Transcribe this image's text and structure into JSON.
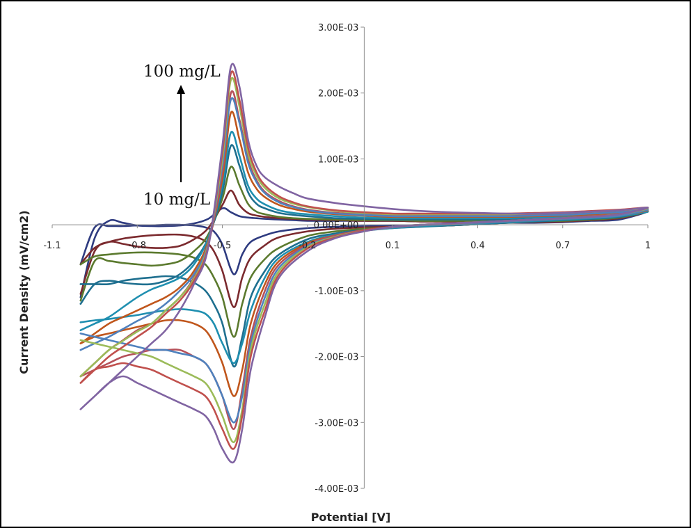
{
  "chart_data": {
    "type": "line",
    "title": "",
    "xlabel": "Potential [V]",
    "ylabel": "Current Density (mV/cm2)",
    "xlim": [
      -1.1,
      1
    ],
    "ylim": [
      -0.004,
      0.003
    ],
    "grid": false,
    "x_ticks": [
      "-1.1",
      "-0.8",
      "-0.5",
      "-0.2",
      "0.1",
      "0.4",
      "0.7",
      "1"
    ],
    "y_ticks": [
      "3.00E-03",
      "2.00E-03",
      "1.00E-03",
      "0.00E+00",
      "-1.00E-03",
      "-2.00E-03",
      "-3.00E-03",
      "-4.00E-03"
    ],
    "annotations": [
      {
        "text": "100 mg/L"
      },
      {
        "text": "10 mg/L"
      }
    ],
    "series_template": {
      "forward_x": [
        -1.0,
        -0.95,
        -0.9,
        -0.85,
        -0.8,
        -0.75,
        -0.7,
        -0.65,
        -0.6,
        -0.55,
        -0.5,
        -0.47,
        -0.44,
        -0.41,
        -0.38,
        -0.35,
        -0.3,
        -0.25,
        -0.2,
        -0.1,
        0.0,
        0.1,
        0.2,
        0.3,
        0.4,
        0.5,
        0.6,
        0.7,
        0.8,
        0.9,
        1.0
      ],
      "reverse_x": [
        1.0,
        0.9,
        0.8,
        0.7,
        0.6,
        0.5,
        0.4,
        0.3,
        0.2,
        0.1,
        0.0,
        -0.1,
        -0.2,
        -0.3,
        -0.35,
        -0.4,
        -0.43,
        -0.46,
        -0.5,
        -0.53,
        -0.56,
        -0.6,
        -0.65,
        -0.7,
        -0.75,
        -0.8,
        -0.85,
        -0.9,
        -0.95,
        -1.0
      ]
    },
    "series": [
      {
        "color": "#2e3b80",
        "forward_y": [
          -0.0011,
          -0.0002,
          6e-05,
          3e-05,
          -1e-05,
          -2e-05,
          -2e-05,
          -1e-05,
          2e-05,
          9e-05,
          0.00025,
          0.00019,
          0.00013,
          0.00011,
          0.0001,
          9e-05,
          8e-05,
          7e-05,
          6e-05,
          6e-05,
          6e-05,
          6e-05,
          5e-05,
          5e-05,
          4e-05,
          4e-05,
          4e-05,
          5e-05,
          6e-05,
          8e-05,
          0.0002
        ],
        "reverse_y": [
          0.0002,
          9e-05,
          6e-05,
          4e-05,
          3e-05,
          3e-05,
          1e-05,
          -1e-05,
          -1e-05,
          -1e-05,
          -2e-05,
          -3e-05,
          -5e-05,
          -0.0001,
          -0.00016,
          -0.00026,
          -0.00045,
          -0.00075,
          -0.0003,
          -0.0001,
          -4e-05,
          -1e-05,
          0.0,
          0.0,
          -1e-05,
          -1e-05,
          -2e-05,
          -2e-05,
          -4e-05,
          -0.0006
        ]
      },
      {
        "color": "#7b2a2e",
        "forward_y": [
          -0.00105,
          -0.0004,
          -0.00026,
          -0.00029,
          -0.00033,
          -0.00035,
          -0.00035,
          -0.00032,
          -0.00022,
          -5e-05,
          0.0003,
          0.00052,
          0.0003,
          0.00018,
          0.00014,
          0.00012,
          0.0001,
          9e-05,
          8e-05,
          7e-05,
          6e-05,
          6e-05,
          5e-05,
          5e-05,
          5e-05,
          5e-05,
          5e-05,
          6e-05,
          7e-05,
          0.0001,
          0.0002
        ],
        "reverse_y": [
          0.0002,
          0.0001,
          7e-05,
          5e-05,
          4e-05,
          3e-05,
          1e-05,
          -1e-05,
          -2e-05,
          -3e-05,
          -4e-05,
          -6e-05,
          -0.0001,
          -0.00019,
          -0.00031,
          -0.0005,
          -0.0008,
          -0.00125,
          -0.0007,
          -0.0004,
          -0.00025,
          -0.00018,
          -0.00015,
          -0.00015,
          -0.00016,
          -0.00018,
          -0.00021,
          -0.00026,
          -0.00035,
          -0.0006
        ]
      },
      {
        "color": "#5b7a2e",
        "forward_y": [
          -0.00115,
          -0.00055,
          -0.00055,
          -0.00058,
          -0.0006,
          -0.00062,
          -0.0006,
          -0.00055,
          -0.0004,
          -0.00015,
          0.0004,
          0.00088,
          0.0006,
          0.00032,
          0.0002,
          0.00016,
          0.00012,
          0.0001,
          9e-05,
          8e-05,
          7e-05,
          7e-05,
          6e-05,
          6e-05,
          6e-05,
          6e-05,
          7e-05,
          8e-05,
          0.0001,
          0.00012,
          0.0002
        ],
        "reverse_y": [
          0.0002,
          0.00011,
          8e-05,
          6e-05,
          5e-05,
          3e-05,
          1e-05,
          -1e-05,
          -2e-05,
          -4e-05,
          -6e-05,
          -0.0001,
          -0.00017,
          -0.00035,
          -0.00052,
          -0.0008,
          -0.0012,
          -0.0017,
          -0.0011,
          -0.0008,
          -0.0006,
          -0.0005,
          -0.00045,
          -0.00043,
          -0.00042,
          -0.00042,
          -0.00043,
          -0.00045,
          -0.00048,
          -0.0006
        ]
      },
      {
        "color": "#1e6f8f",
        "forward_y": [
          -0.0012,
          -0.0009,
          -0.00085,
          -0.00088,
          -0.0009,
          -0.0009,
          -0.00085,
          -0.00075,
          -0.00055,
          -0.0002,
          0.0005,
          0.0012,
          0.0009,
          0.0005,
          0.00032,
          0.00025,
          0.00018,
          0.00015,
          0.00013,
          0.0001,
          9e-05,
          8e-05,
          8e-05,
          8e-05,
          8e-05,
          8e-05,
          9e-05,
          0.0001,
          0.00012,
          0.00014,
          0.0002
        ],
        "reverse_y": [
          0.0002,
          0.00012,
          9e-05,
          7e-05,
          5e-05,
          3e-05,
          1e-05,
          -1e-05,
          -3e-05,
          -5e-05,
          -8e-05,
          -0.00013,
          -0.00022,
          -0.00045,
          -0.0007,
          -0.0011,
          -0.0017,
          -0.00215,
          -0.0015,
          -0.0012,
          -0.001,
          -0.00088,
          -0.0008,
          -0.00078,
          -0.0008,
          -0.00082,
          -0.00085,
          -0.0009,
          -0.0009,
          -0.0009
        ]
      },
      {
        "color": "#1f8fb0",
        "forward_y": [
          -0.0016,
          -0.0015,
          -0.0014,
          -0.00125,
          -0.0011,
          -0.00098,
          -0.0009,
          -0.0008,
          -0.0006,
          -0.0002,
          0.0006,
          0.0014,
          0.00105,
          0.0006,
          0.0004,
          0.00031,
          0.00022,
          0.00018,
          0.00016,
          0.00013,
          0.00011,
          0.0001,
          0.0001,
          0.0001,
          0.0001,
          0.0001,
          0.00011,
          0.00012,
          0.00014,
          0.00016,
          0.0002
        ],
        "reverse_y": [
          0.0002,
          0.00013,
          0.0001,
          8e-05,
          6e-05,
          4e-05,
          2e-05,
          0.0,
          -2e-05,
          -5e-05,
          -9e-05,
          -0.00015,
          -0.00026,
          -0.0005,
          -0.0008,
          -0.0013,
          -0.0018,
          -0.0021,
          -0.0018,
          -0.0015,
          -0.00135,
          -0.0013,
          -0.00128,
          -0.0013,
          -0.00133,
          -0.00137,
          -0.0014,
          -0.00143,
          -0.00145,
          -0.00148
        ]
      },
      {
        "color": "#c0561c",
        "forward_y": [
          -0.0018,
          -0.00165,
          -0.0015,
          -0.0014,
          -0.0013,
          -0.0012,
          -0.0011,
          -0.00095,
          -0.0007,
          -0.00025,
          0.0007,
          0.0017,
          0.0013,
          0.0008,
          0.00055,
          0.00042,
          0.0003,
          0.00024,
          0.0002,
          0.00016,
          0.00014,
          0.00012,
          0.00012,
          0.00012,
          0.00012,
          0.00012,
          0.00013,
          0.00014,
          0.00016,
          0.00018,
          0.00022
        ],
        "reverse_y": [
          0.00022,
          0.00014,
          0.00011,
          9e-05,
          7e-05,
          5e-05,
          3e-05,
          1e-05,
          -1e-05,
          -4e-05,
          -9e-05,
          -0.00016,
          -0.00028,
          -0.00055,
          -0.0009,
          -0.0015,
          -0.0022,
          -0.0026,
          -0.0021,
          -0.0018,
          -0.0016,
          -0.0015,
          -0.00145,
          -0.00145,
          -0.0015,
          -0.00155,
          -0.0016,
          -0.00165,
          -0.0017,
          -0.0018
        ]
      },
      {
        "color": "#b6515a",
        "forward_y": [
          -0.0023,
          -0.0021,
          -0.0019,
          -0.00175,
          -0.0016,
          -0.0015,
          -0.0013,
          -0.0011,
          -0.0008,
          -0.0003,
          0.0008,
          0.002,
          0.0016,
          0.001,
          0.00068,
          0.0005,
          0.00036,
          0.00028,
          0.00023,
          0.00018,
          0.00016,
          0.00014,
          0.00014,
          0.00014,
          0.00014,
          0.00014,
          0.00015,
          0.00016,
          0.00018,
          0.0002,
          0.00024
        ],
        "reverse_y": [
          0.00024,
          0.00015,
          0.00012,
          0.0001,
          8e-05,
          6e-05,
          4e-05,
          2e-05,
          0.0,
          -3e-05,
          -8e-05,
          -0.00016,
          -0.0003,
          -0.0006,
          -0.001,
          -0.0017,
          -0.0025,
          -0.0031,
          -0.0026,
          -0.0023,
          -0.0021,
          -0.002,
          -0.0019,
          -0.0019,
          -0.0019,
          -0.00195,
          -0.002,
          -0.0021,
          -0.0022,
          -0.0023
        ]
      },
      {
        "color": "#4f81bd",
        "forward_y": [
          -0.0019,
          -0.0018,
          -0.0017,
          -0.00158,
          -0.00146,
          -0.00135,
          -0.0012,
          -0.001,
          -0.00075,
          -0.00028,
          0.0009,
          0.0019,
          0.00155,
          0.00095,
          0.00065,
          0.00048,
          0.00034,
          0.00027,
          0.00022,
          0.00017,
          0.00015,
          0.00013,
          0.00013,
          0.00013,
          0.00013,
          0.00013,
          0.00014,
          0.00015,
          0.00017,
          0.00019,
          0.00023
        ],
        "reverse_y": [
          0.00023,
          0.00014,
          0.00011,
          9e-05,
          7e-05,
          5e-05,
          3e-05,
          1e-05,
          -1e-05,
          -4e-05,
          -9e-05,
          -0.00018,
          -0.00032,
          -0.00065,
          -0.0011,
          -0.0018,
          -0.0026,
          -0.003,
          -0.0026,
          -0.0023,
          -0.0021,
          -0.002,
          -0.00195,
          -0.0019,
          -0.0019,
          -0.00185,
          -0.0018,
          -0.00175,
          -0.0017,
          -0.00165
        ]
      },
      {
        "color": "#9bbb59",
        "forward_y": [
          -0.0023,
          -0.0021,
          -0.0019,
          -0.00176,
          -0.00162,
          -0.0015,
          -0.0013,
          -0.0011,
          -0.00082,
          -0.0003,
          0.001,
          0.0022,
          0.0018,
          0.0011,
          0.00075,
          0.00056,
          0.0004,
          0.00032,
          0.00027,
          0.00021,
          0.00018,
          0.00016,
          0.00016,
          0.00016,
          0.00016,
          0.00016,
          0.00017,
          0.00018,
          0.0002,
          0.00022,
          0.00025
        ],
        "reverse_y": [
          0.00025,
          0.00016,
          0.00013,
          0.0001,
          8e-05,
          6e-05,
          4e-05,
          2e-05,
          0.0,
          -3e-05,
          -9e-05,
          -0.00018,
          -0.00034,
          -0.0007,
          -0.0012,
          -0.0019,
          -0.0028,
          -0.0033,
          -0.0029,
          -0.0026,
          -0.0024,
          -0.0023,
          -0.0022,
          -0.0021,
          -0.002,
          -0.00195,
          -0.0019,
          -0.00185,
          -0.0018,
          -0.00175
        ]
      },
      {
        "color": "#c0504d",
        "forward_y": [
          -0.0024,
          -0.0022,
          -0.002,
          -0.00185,
          -0.0017,
          -0.00155,
          -0.00135,
          -0.00115,
          -0.00085,
          -0.00032,
          0.0011,
          0.0023,
          0.0019,
          0.00118,
          0.0008,
          0.0006,
          0.00043,
          0.00034,
          0.00028,
          0.00022,
          0.00019,
          0.00017,
          0.00017,
          0.00017,
          0.00017,
          0.00017,
          0.00018,
          0.00019,
          0.00021,
          0.00023,
          0.00026
        ],
        "reverse_y": [
          0.00026,
          0.00016,
          0.00013,
          0.0001,
          8e-05,
          6e-05,
          4e-05,
          2e-05,
          0.0,
          -3e-05,
          -9e-05,
          -0.00019,
          -0.00036,
          -0.00075,
          -0.0013,
          -0.002,
          -0.0029,
          -0.0034,
          -0.0031,
          -0.0028,
          -0.0026,
          -0.0025,
          -0.0024,
          -0.0023,
          -0.0022,
          -0.00215,
          -0.0021,
          -0.00215,
          -0.0022,
          -0.0024
        ]
      },
      {
        "color": "#8064a2",
        "forward_y": [
          -0.0028,
          -0.0026,
          -0.0024,
          -0.0022,
          -0.002,
          -0.0018,
          -0.0016,
          -0.0013,
          -0.0009,
          -0.00035,
          0.0012,
          0.0024,
          0.0021,
          0.0013,
          0.0009,
          0.00072,
          0.00058,
          0.00048,
          0.0004,
          0.00033,
          0.00028,
          0.00024,
          0.00021,
          0.00019,
          0.00018,
          0.00017,
          0.00017,
          0.00018,
          0.0002,
          0.00022,
          0.00026
        ],
        "reverse_y": [
          0.00026,
          0.00016,
          0.00012,
          0.0001,
          8e-05,
          6e-05,
          4e-05,
          2e-05,
          0.0,
          -3e-05,
          -0.0001,
          -0.0002,
          -0.0004,
          -0.0008,
          -0.0014,
          -0.0022,
          -0.0031,
          -0.0036,
          -0.0034,
          -0.0031,
          -0.0029,
          -0.0028,
          -0.0027,
          -0.0026,
          -0.0025,
          -0.0024,
          -0.0023,
          -0.0024,
          -0.0026,
          -0.0028
        ]
      }
    ]
  }
}
